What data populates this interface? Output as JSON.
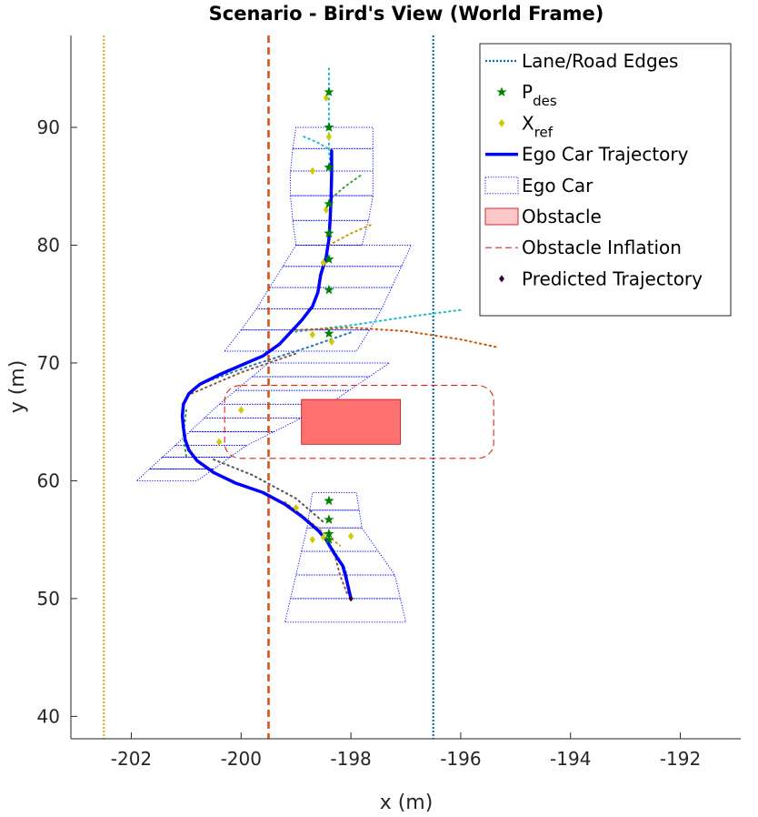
{
  "chart_data": {
    "type": "scatter",
    "title": "Scenario - Bird's View (World Frame)",
    "xlabel": "x (m)",
    "ylabel": "y (m)",
    "xlim": [
      -203.1,
      -190.9
    ],
    "ylim": [
      38.1,
      97.8
    ],
    "xticks": [
      -202,
      -200,
      -198,
      -196,
      -194,
      -192
    ],
    "yticks": [
      40,
      50,
      60,
      70,
      80,
      90
    ],
    "grid": false,
    "legend_position": "top-right",
    "legend": [
      {
        "key": "edges",
        "label": "Lane/Road Edges"
      },
      {
        "key": "pdes",
        "label": "P",
        "sub": "des"
      },
      {
        "key": "xref",
        "label": "X",
        "sub": "ref"
      },
      {
        "key": "traj",
        "label": "Ego Car Trajectory"
      },
      {
        "key": "car",
        "label": "Ego Car"
      },
      {
        "key": "obstacle",
        "label": "Obstacle"
      },
      {
        "key": "inflation",
        "label": "Obstacle Inflation"
      },
      {
        "key": "pred",
        "label": "Predicted Trajectory"
      }
    ],
    "colors": {
      "left_edge": "#EDB120",
      "center_line": "#D95319",
      "right_edge": "#0072BD",
      "trajectory": "#0000FF",
      "ego_car": "#0000FF",
      "pdes": "#008000",
      "xref": "#CCCC00",
      "obstacle_fill": "#FF7070",
      "obstacle_edge": "#CC0000",
      "inflation": "#DD2222",
      "pred": "#330033"
    },
    "lane_lines": [
      {
        "name": "left-edge",
        "x": -202.5,
        "style": "dotted"
      },
      {
        "name": "center-line",
        "x": -199.5,
        "style": "dashed"
      },
      {
        "name": "right-edge",
        "x": -196.5,
        "style": "dotted"
      }
    ],
    "obstacle": {
      "x": [
        -198.9,
        -197.1
      ],
      "y": [
        63.1,
        66.9
      ]
    },
    "inflation": {
      "x": [
        -200.3,
        -195.4
      ],
      "y": [
        61.9,
        68.1
      ],
      "corner_radius": 0.3
    },
    "trajectory": [
      [
        -198.0,
        50.0
      ],
      [
        -198.05,
        51.0
      ],
      [
        -198.1,
        52.0
      ],
      [
        -198.15,
        52.8
      ],
      [
        -198.3,
        53.8
      ],
      [
        -198.45,
        55.0
      ],
      [
        -198.6,
        55.8
      ],
      [
        -198.9,
        57.0
      ],
      [
        -199.2,
        58.0
      ],
      [
        -199.6,
        59.0
      ],
      [
        -200.1,
        59.8
      ],
      [
        -200.5,
        60.7
      ],
      [
        -200.8,
        61.7
      ],
      [
        -200.95,
        62.6
      ],
      [
        -201.02,
        63.5
      ],
      [
        -201.05,
        64.5
      ],
      [
        -201.07,
        65.5
      ],
      [
        -201.05,
        66.5
      ],
      [
        -200.95,
        67.4
      ],
      [
        -200.75,
        68.2
      ],
      [
        -200.4,
        69.0
      ],
      [
        -200.0,
        69.8
      ],
      [
        -199.6,
        70.6
      ],
      [
        -199.3,
        71.6
      ],
      [
        -199.1,
        72.6
      ],
      [
        -198.9,
        73.6
      ],
      [
        -198.7,
        74.8
      ],
      [
        -198.6,
        76.0
      ],
      [
        -198.55,
        77.5
      ],
      [
        -198.45,
        79.0
      ],
      [
        -198.4,
        80.5
      ],
      [
        -198.38,
        82.0
      ],
      [
        -198.36,
        84.0
      ],
      [
        -198.35,
        86.0
      ],
      [
        -198.35,
        88.0
      ]
    ],
    "pdes": [
      [
        -198.4,
        93.0
      ],
      [
        -198.4,
        90.0
      ],
      [
        -198.4,
        86.6
      ],
      [
        -198.4,
        83.5
      ],
      [
        -198.4,
        81.0
      ],
      [
        -198.4,
        78.8
      ],
      [
        -198.4,
        76.2
      ],
      [
        -198.4,
        72.5
      ],
      [
        -198.4,
        58.3
      ],
      [
        -198.4,
        56.7
      ],
      [
        -198.4,
        55.5
      ],
      [
        -198.4,
        55.0
      ]
    ],
    "xref": [
      [
        -198.45,
        92.5
      ],
      [
        -198.4,
        89.2
      ],
      [
        -198.7,
        86.3
      ],
      [
        -198.45,
        83.0
      ],
      [
        -198.5,
        78.5
      ],
      [
        -198.7,
        72.4
      ],
      [
        -198.35,
        71.8
      ],
      [
        -200.0,
        66.0
      ],
      [
        -200.4,
        63.3
      ],
      [
        -199.0,
        57.7
      ],
      [
        -198.5,
        55.2
      ],
      [
        -198.7,
        55.0
      ],
      [
        -198.0,
        55.3
      ]
    ],
    "predicted_paths": [
      {
        "color": "#17BECF",
        "points": [
          [
            -198.35,
            88.0
          ],
          [
            -198.6,
            88.7
          ],
          [
            -198.9,
            89.3
          ]
        ]
      },
      {
        "color": "#17BECF",
        "points": [
          [
            -198.35,
            86.0
          ],
          [
            -198.4,
            88.0
          ],
          [
            -198.4,
            91.0
          ],
          [
            -198.4,
            95.0
          ]
        ]
      },
      {
        "color": "#33AA33",
        "points": [
          [
            -198.35,
            84.0
          ],
          [
            -198.1,
            85.0
          ],
          [
            -197.8,
            86.0
          ]
        ]
      },
      {
        "color": "#C8A000",
        "points": [
          [
            -198.4,
            80.0
          ],
          [
            -198.0,
            81.0
          ],
          [
            -197.6,
            81.8
          ]
        ]
      },
      {
        "color": "#17BECF",
        "points": [
          [
            -199.1,
            72.6
          ],
          [
            -198.0,
            73.2
          ],
          [
            -197.0,
            73.9
          ],
          [
            -196.0,
            74.5
          ]
        ]
      },
      {
        "color": "#CC5500",
        "points": [
          [
            -199.0,
            72.8
          ],
          [
            -198.0,
            73.0
          ],
          [
            -197.0,
            72.7
          ],
          [
            -196.0,
            72.0
          ],
          [
            -195.3,
            71.3
          ]
        ]
      },
      {
        "color": "#1F77B4",
        "points": [
          [
            -200.7,
            68.3
          ],
          [
            -199.8,
            69.8
          ],
          [
            -198.8,
            71.3
          ],
          [
            -198.0,
            72.6
          ]
        ]
      },
      {
        "color": "#8C564B",
        "points": [
          [
            -200.9,
            67.4
          ],
          [
            -200.0,
            69.2
          ],
          [
            -199.0,
            70.8
          ]
        ]
      },
      {
        "color": "#2CA02C",
        "points": [
          [
            -201.0,
            66.0
          ],
          [
            -201.05,
            64.0
          ],
          [
            -201.0,
            62.0
          ]
        ]
      },
      {
        "color": "#555555",
        "points": [
          [
            -200.5,
            61.8
          ],
          [
            -199.8,
            60.5
          ],
          [
            -199.0,
            58.5
          ],
          [
            -198.5,
            56.5
          ]
        ]
      },
      {
        "color": "#C8A000",
        "points": [
          [
            -199.2,
            58.2
          ],
          [
            -198.6,
            56.0
          ],
          [
            -198.2,
            54.5
          ]
        ]
      },
      {
        "color": "#2CA02C",
        "points": [
          [
            -198.6,
            55.8
          ],
          [
            -198.3,
            54.0
          ],
          [
            -198.1,
            52.5
          ],
          [
            -198.0,
            50.0
          ]
        ]
      },
      {
        "color": "#8C564B",
        "points": [
          [
            -198.3,
            53.8
          ],
          [
            -198.2,
            52.0
          ],
          [
            -198.05,
            50.2
          ]
        ]
      }
    ],
    "ego_car_bands": [
      {
        "xl": [
          -201.9,
          -201.2,
          -200.4,
          -199.5
        ],
        "xr": [
          -200.8,
          -199.9,
          -198.4,
          -197.3
        ],
        "y": [
          60.0,
          63.0,
          66.5,
          70.0
        ],
        "n": 9
      },
      {
        "xl": [
          -199.2,
          -199.0,
          -198.8,
          -198.7
        ],
        "xr": [
          -197.0,
          -197.2,
          -197.8,
          -197.9
        ],
        "y": [
          48.0,
          52.0,
          56.0,
          59.0
        ],
        "n": 6
      },
      {
        "xl": [
          -200.3,
          -199.8,
          -199.4,
          -199.0
        ],
        "xr": [
          -197.9,
          -197.5,
          -197.2,
          -196.9
        ],
        "y": [
          71.0,
          74.0,
          77.0,
          80.0
        ],
        "n": 5
      },
      {
        "xl": [
          -199.0,
          -199.1,
          -199.1,
          -199.0
        ],
        "xr": [
          -197.8,
          -197.6,
          -197.6,
          -197.6
        ],
        "y": [
          80.0,
          83.5,
          87.0,
          90.0
        ],
        "n": 5
      }
    ]
  }
}
